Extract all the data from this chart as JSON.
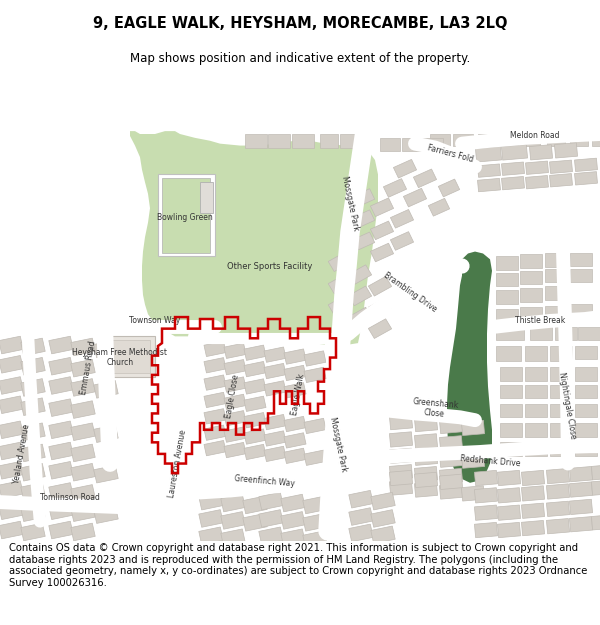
{
  "title": "9, EAGLE WALK, HEYSHAM, MORECAMBE, LA3 2LQ",
  "subtitle": "Map shows position and indicative extent of the property.",
  "footer": "Contains OS data © Crown copyright and database right 2021. This information is subject to Crown copyright and database rights 2023 and is reproduced with the permission of HM Land Registry. The polygons (including the associated geometry, namely x, y co-ordinates) are subject to Crown copyright and database rights 2023 Ordnance Survey 100026316.",
  "map_bg": "#f0ede8",
  "road_color": "#ffffff",
  "building_color": "#d4cfc8",
  "building_edge": "#c0bbb4",
  "green_light": "#c8ddb0",
  "green_dark": "#4a7a4a",
  "red_outline": "#cc0000",
  "title_fontsize": 10.5,
  "subtitle_fontsize": 8.5,
  "footer_fontsize": 7.2,
  "label_fs": 5.5
}
